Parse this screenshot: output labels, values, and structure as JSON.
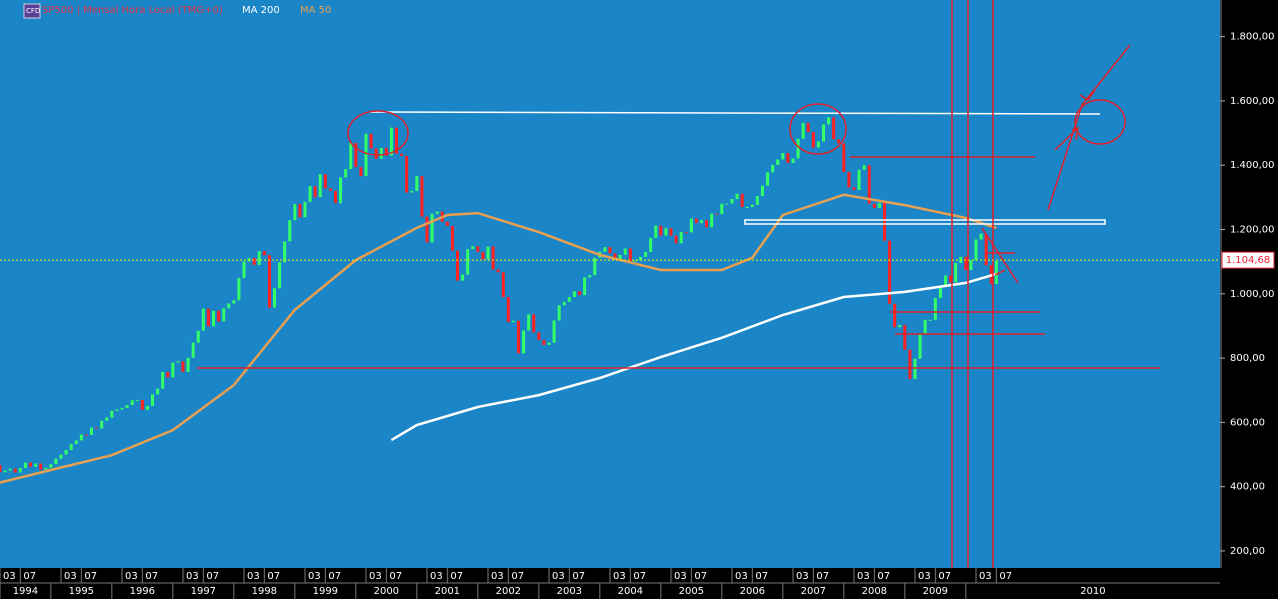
{
  "chart_data": {
    "type": "candlestick",
    "title": "SP500 | Mensal Hora Local (TMG+0)",
    "x": [
      "1994-01",
      "1994-02",
      "1994-03",
      "1994-04",
      "1994-05",
      "1994-06",
      "1994-07",
      "1994-08",
      "1994-09",
      "1994-10",
      "1994-11",
      "1994-12",
      "1995-01",
      "1995-02",
      "1995-03",
      "1995-04",
      "1995-05",
      "1995-06",
      "1995-07",
      "1995-08",
      "1995-09",
      "1995-10",
      "1995-11",
      "1995-12",
      "1996-01",
      "1996-02",
      "1996-03",
      "1996-04",
      "1996-05",
      "1996-06",
      "1996-07",
      "1996-08",
      "1996-09",
      "1996-10",
      "1996-11",
      "1996-12",
      "1997-01",
      "1997-02",
      "1997-03",
      "1997-04",
      "1997-05",
      "1997-06",
      "1997-07",
      "1997-08",
      "1997-09",
      "1997-10",
      "1997-11",
      "1997-12",
      "1998-01",
      "1998-02",
      "1998-03",
      "1998-04",
      "1998-05",
      "1998-06",
      "1998-07",
      "1998-08",
      "1998-09",
      "1998-10",
      "1998-11",
      "1998-12",
      "1999-01",
      "1999-02",
      "1999-03",
      "1999-04",
      "1999-05",
      "1999-06",
      "1999-07",
      "1999-08",
      "1999-09",
      "1999-10",
      "1999-11",
      "1999-12",
      "2000-01",
      "2000-02",
      "2000-03",
      "2000-04",
      "2000-05",
      "2000-06",
      "2000-07",
      "2000-08",
      "2000-09",
      "2000-10",
      "2000-11",
      "2000-12",
      "2001-01",
      "2001-02",
      "2001-03",
      "2001-04",
      "2001-05",
      "2001-06",
      "2001-07",
      "2001-08",
      "2001-09",
      "2001-10",
      "2001-11",
      "2001-12",
      "2002-01",
      "2002-02",
      "2002-03",
      "2002-04",
      "2002-05",
      "2002-06",
      "2002-07",
      "2002-08",
      "2002-09",
      "2002-10",
      "2002-11",
      "2002-12",
      "2003-01",
      "2003-02",
      "2003-03",
      "2003-04",
      "2003-05",
      "2003-06",
      "2003-07",
      "2003-08",
      "2003-09",
      "2003-10",
      "2003-11",
      "2003-12",
      "2004-01",
      "2004-02",
      "2004-03",
      "2004-04",
      "2004-05",
      "2004-06",
      "2004-07",
      "2004-08",
      "2004-09",
      "2004-10",
      "2004-11",
      "2004-12",
      "2005-01",
      "2005-02",
      "2005-03",
      "2005-04",
      "2005-05",
      "2005-06",
      "2005-07",
      "2005-08",
      "2005-09",
      "2005-10",
      "2005-11",
      "2005-12",
      "2006-01",
      "2006-02",
      "2006-03",
      "2006-04",
      "2006-05",
      "2006-06",
      "2006-07",
      "2006-08",
      "2006-09",
      "2006-10",
      "2006-11",
      "2006-12",
      "2007-01",
      "2007-02",
      "2007-03",
      "2007-04",
      "2007-05",
      "2007-06",
      "2007-07",
      "2007-08",
      "2007-09",
      "2007-10",
      "2007-11",
      "2007-12",
      "2008-01",
      "2008-02",
      "2008-03",
      "2008-04",
      "2008-05",
      "2008-06",
      "2008-07",
      "2008-08",
      "2008-09",
      "2008-10",
      "2008-11",
      "2008-12",
      "2009-01",
      "2009-02",
      "2009-03",
      "2009-04",
      "2009-05",
      "2009-06",
      "2009-07",
      "2009-08",
      "2009-09",
      "2009-10",
      "2009-11",
      "2009-12",
      "2010-01",
      "2010-02",
      "2010-03",
      "2010-04",
      "2010-05",
      "2010-06",
      "2010-07"
    ],
    "values": [
      481,
      467,
      445,
      450,
      456,
      444,
      458,
      475,
      462,
      472,
      453,
      459,
      470,
      487,
      500,
      514,
      533,
      544,
      562,
      561,
      584,
      581,
      605,
      615,
      636,
      640,
      645,
      654,
      669,
      670,
      639,
      651,
      687,
      705,
      757,
      740,
      786,
      790,
      757,
      801,
      848,
      885,
      954,
      899,
      947,
      914,
      955,
      970,
      980,
      1049,
      1101,
      1111,
      1090,
      1133,
      1120,
      957,
      1017,
      1098,
      1163,
      1229,
      1279,
      1238,
      1286,
      1335,
      1301,
      1372,
      1328,
      1320,
      1282,
      1362,
      1388,
      1469,
      1394,
      1366,
      1498,
      1452,
      1420,
      1454,
      1430,
      1517,
      1436,
      1429,
      1315,
      1320,
      1366,
      1240,
      1160,
      1249,
      1256,
      1224,
      1211,
      1134,
      1041,
      1060,
      1139,
      1148,
      1130,
      1107,
      1147,
      1076,
      1067,
      990,
      912,
      916,
      815,
      886,
      936,
      880,
      856,
      841,
      848,
      917,
      964,
      975,
      990,
      1008,
      996,
      1051,
      1058,
      1112,
      1131,
      1145,
      1126,
      1107,
      1121,
      1141,
      1102,
      1104,
      1115,
      1130,
      1174,
      1212,
      1181,
      1204,
      1181,
      1157,
      1192,
      1191,
      1234,
      1220,
      1229,
      1207,
      1249,
      1248,
      1280,
      1281,
      1295,
      1311,
      1270,
      1270,
      1277,
      1304,
      1336,
      1378,
      1401,
      1418,
      1438,
      1407,
      1421,
      1482,
      1531,
      1503,
      1455,
      1474,
      1527,
      1549,
      1481,
      1468,
      1379,
      1331,
      1323,
      1386,
      1400,
      1280,
      1267,
      1283,
      1165,
      969,
      896,
      903,
      826,
      735,
      798,
      873,
      919,
      919,
      987,
      1021,
      1057,
      1036,
      1096,
      1115,
      1074,
      1104,
      1169,
      1187,
      1089,
      1031,
      1102
    ],
    "up_color": "#33ff66",
    "down_color": "#ff2020",
    "series": [
      {
        "name": "MA 200",
        "color": "#ffffff",
        "x": [
          "2000-08",
          "2001-01",
          "2002-01",
          "2003-01",
          "2004-01",
          "2005-01",
          "2006-01",
          "2007-01",
          "2008-01",
          "2009-01",
          "2010-01",
          "2010-07"
        ],
        "values": [
          545,
          592,
          648,
          685,
          738,
          803,
          863,
          934,
          990,
          1006,
          1034,
          1062
        ]
      },
      {
        "name": "MA 50",
        "color": "#e8a050",
        "x": [
          "1994-01",
          "1995-01",
          "1996-01",
          "1997-01",
          "1998-01",
          "1999-01",
          "2000-01",
          "2001-01",
          "2001-07",
          "2002-01",
          "2003-01",
          "2004-01",
          "2005-01",
          "2006-01",
          "2006-07",
          "2007-01",
          "2008-01",
          "2009-01",
          "2010-01",
          "2010-07"
        ],
        "values": [
          405,
          452,
          498,
          576,
          716,
          950,
          1105,
          1205,
          1245,
          1251,
          1192,
          1121,
          1074,
          1074,
          1112,
          1245,
          1308,
          1276,
          1236,
          1205
        ]
      }
    ],
    "last_price": {
      "value": 1104.68,
      "label": "1.104,68"
    },
    "xlim": [
      "1994-03",
      "2014-03"
    ],
    "ylim": [
      147,
      1914
    ],
    "yticks": [
      {
        "value": 200,
        "label": "200,00"
      },
      {
        "value": 400,
        "label": "400,00"
      },
      {
        "value": 600,
        "label": "600,00"
      },
      {
        "value": 800,
        "label": "800,00"
      },
      {
        "value": 1000,
        "label": "1.000,00"
      },
      {
        "value": 1200,
        "label": "1.200,00"
      },
      {
        "value": 1400,
        "label": "1.400,00"
      },
      {
        "value": 1600,
        "label": "1.600,00"
      },
      {
        "value": 1800,
        "label": "1.800,00"
      }
    ],
    "xticks": [
      {
        "value": "1994-03",
        "label": "03"
      },
      {
        "value": "1994-07",
        "label": "07"
      },
      {
        "value": "1995-03",
        "label": "03"
      },
      {
        "value": "1995-07",
        "label": "07"
      },
      {
        "value": "1996-03",
        "label": "03"
      },
      {
        "value": "1996-07",
        "label": "07"
      },
      {
        "value": "1997-03",
        "label": "03"
      },
      {
        "value": "1997-07",
        "label": "07"
      },
      {
        "value": "1998-03",
        "label": "03"
      },
      {
        "value": "1998-07",
        "label": "07"
      },
      {
        "value": "1999-03",
        "label": "03"
      },
      {
        "value": "1999-07",
        "label": "07"
      },
      {
        "value": "2000-03",
        "label": "03"
      },
      {
        "value": "2000-07",
        "label": "07"
      },
      {
        "value": "2001-03",
        "label": "03"
      },
      {
        "value": "2001-07",
        "label": "07"
      },
      {
        "value": "2002-03",
        "label": "03"
      },
      {
        "value": "2002-07",
        "label": "07"
      },
      {
        "value": "2003-03",
        "label": "03"
      },
      {
        "value": "2003-07",
        "label": "07"
      },
      {
        "value": "2004-03",
        "label": "03"
      },
      {
        "value": "2004-07",
        "label": "07"
      },
      {
        "value": "2005-03",
        "label": "03"
      },
      {
        "value": "2005-07",
        "label": "07"
      },
      {
        "value": "2006-03",
        "label": "03"
      },
      {
        "value": "2006-07",
        "label": "07"
      },
      {
        "value": "2007-03",
        "label": "03"
      },
      {
        "value": "2007-07",
        "label": "07"
      },
      {
        "value": "2008-03",
        "label": "03"
      },
      {
        "value": "2008-07",
        "label": "07"
      },
      {
        "value": "2009-03",
        "label": "03"
      },
      {
        "value": "2009-07",
        "label": "07"
      },
      {
        "value": "2010-03",
        "label": "03"
      },
      {
        "value": "2010-07",
        "label": "07"
      }
    ],
    "years": [
      "1994",
      "1995",
      "1996",
      "1997",
      "1998",
      "1999",
      "2000",
      "2001",
      "2002",
      "2003",
      "2004",
      "2005",
      "2006",
      "2007",
      "2008",
      "2009",
      "2010"
    ]
  }
}
